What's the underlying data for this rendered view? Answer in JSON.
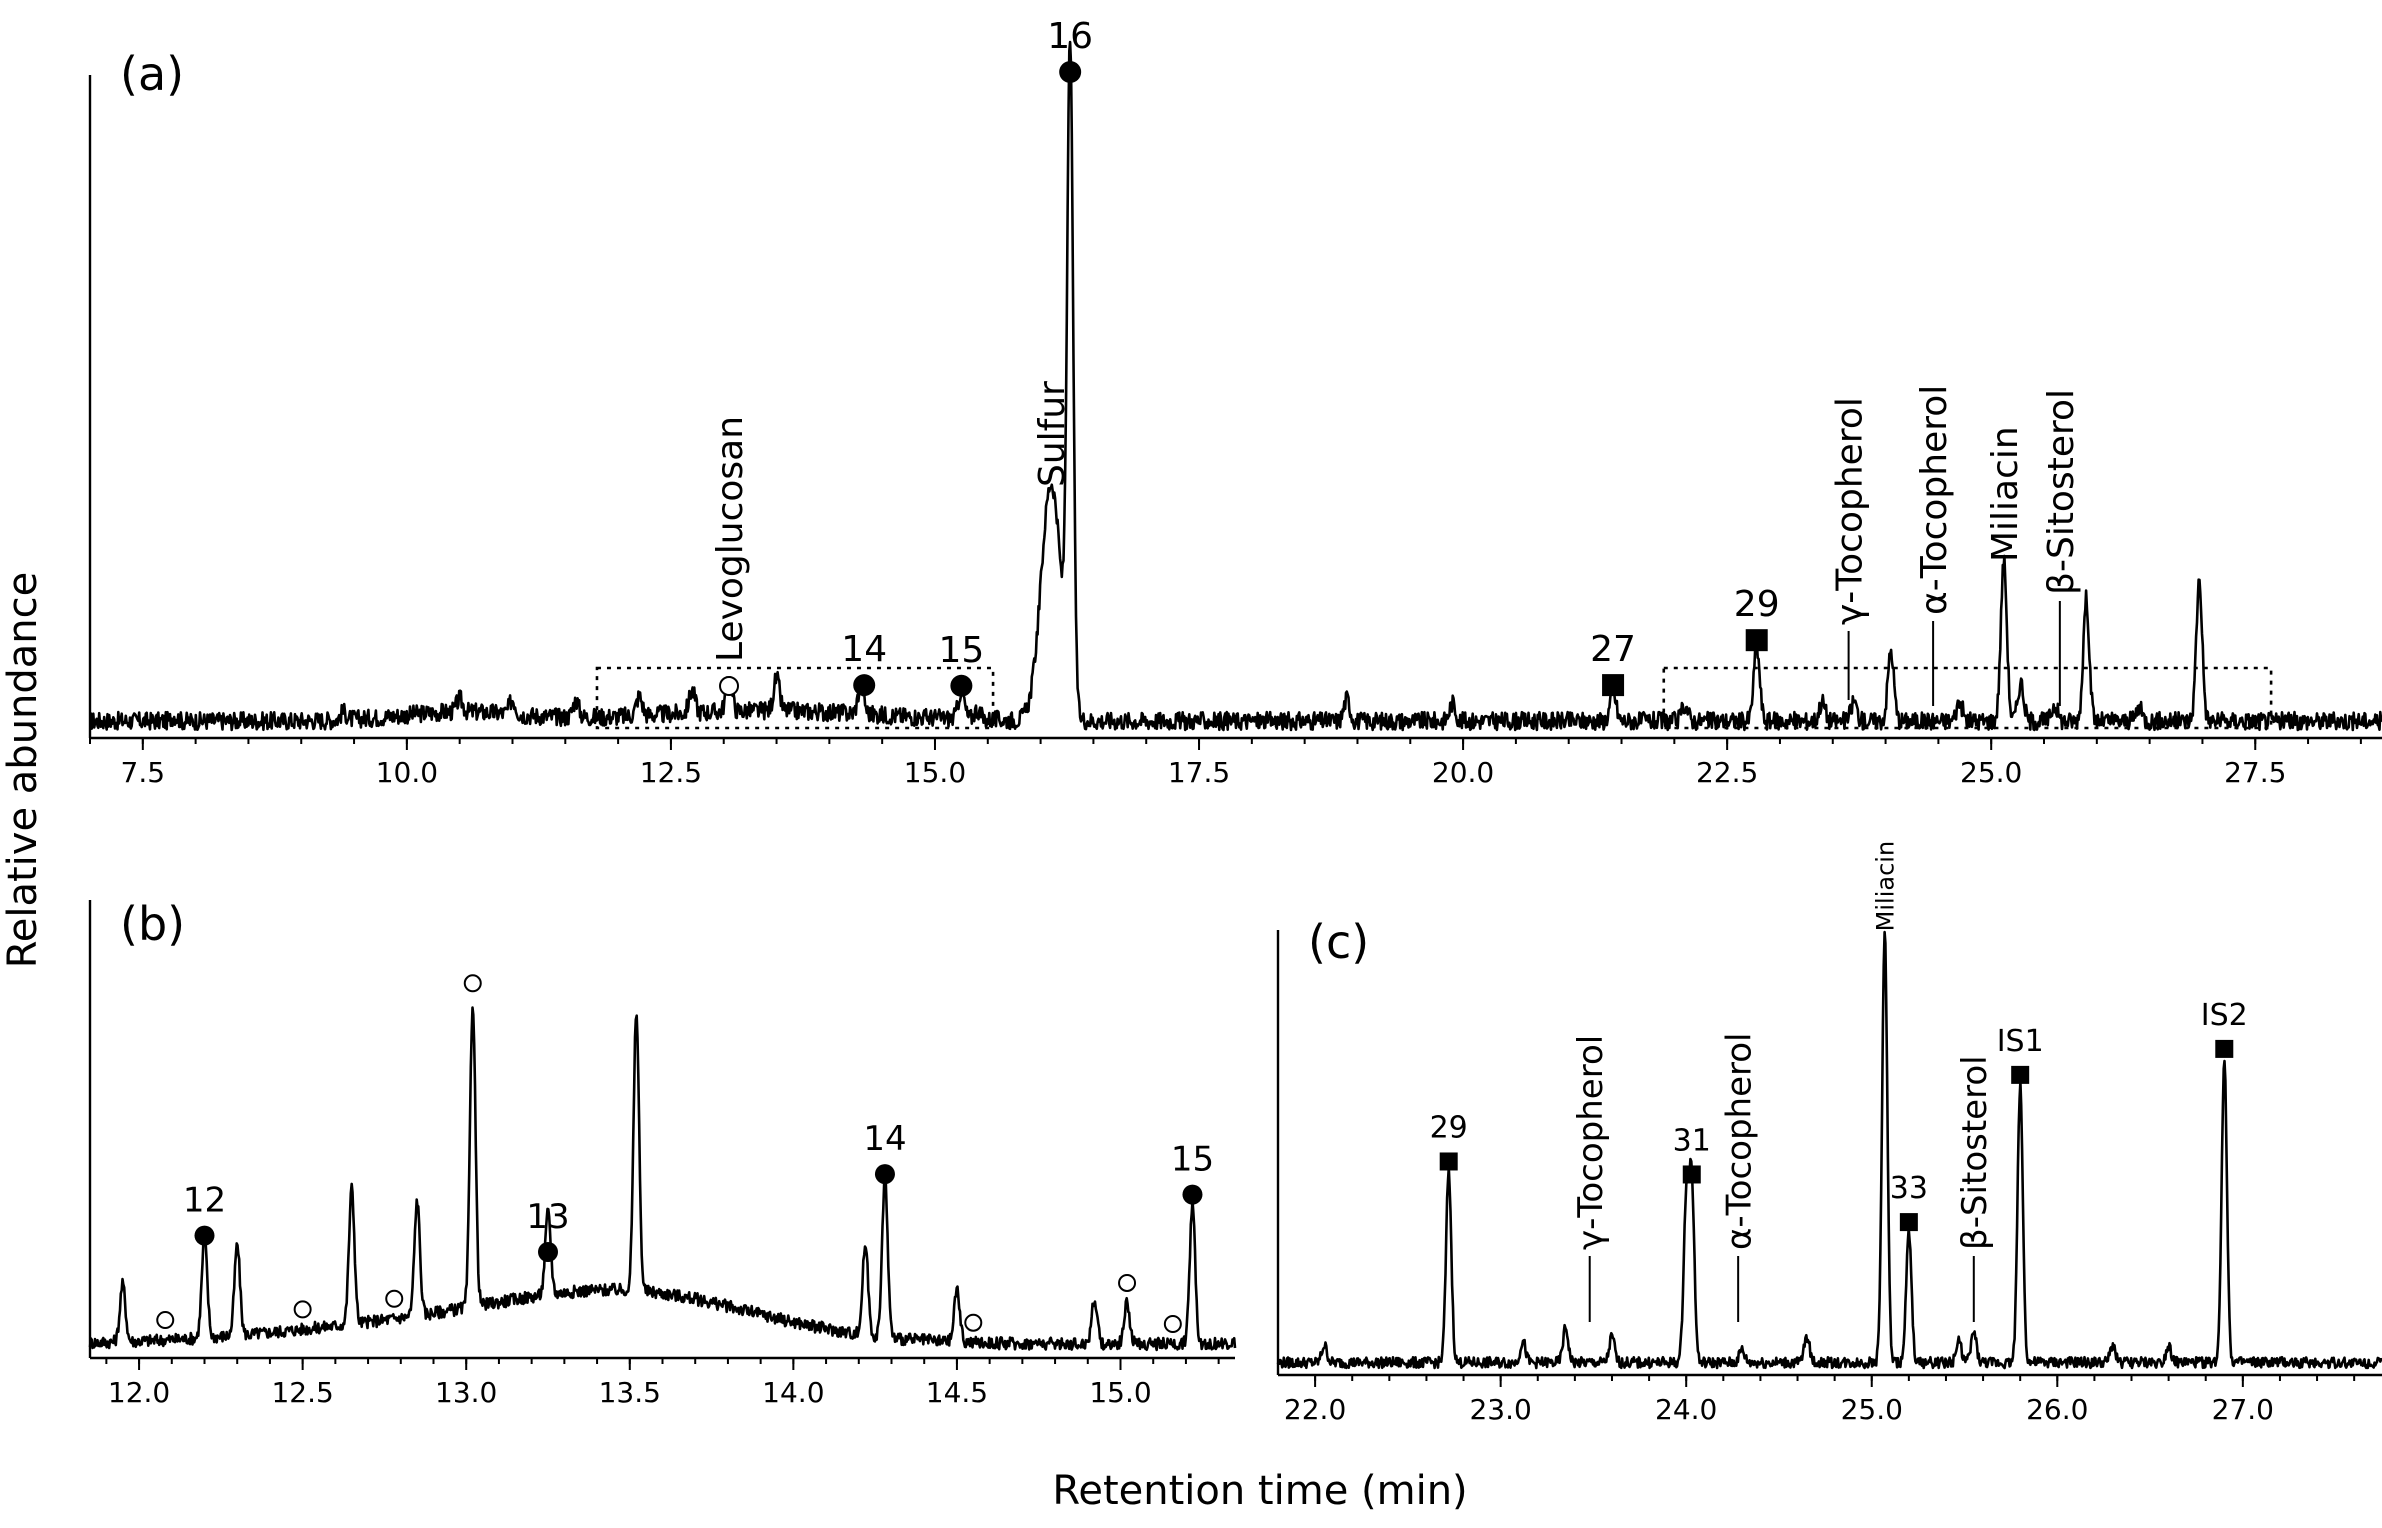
{
  "chart_data": [
    {
      "type": "line",
      "panel": "(a)",
      "xlim": [
        7.0,
        28.7
      ],
      "ylim": [
        0,
        100
      ],
      "xticks": [
        "7.5",
        "10.0",
        "12.5",
        "15.0",
        "17.5",
        "20.0",
        "22.5",
        "25.0",
        "27.5"
      ],
      "peaks": [
        [
          7.8,
          0.8
        ],
        [
          9.4,
          1.2
        ],
        [
          10.5,
          2.0
        ],
        [
          11.0,
          2.3
        ],
        [
          11.6,
          2.6
        ],
        [
          12.2,
          3
        ],
        [
          12.7,
          3.5
        ],
        [
          13.05,
          5.2
        ],
        [
          13.5,
          5
        ],
        [
          14.3,
          4.5
        ],
        [
          15.25,
          4.4
        ],
        [
          15.4,
          1.5
        ],
        [
          16.1,
          37
        ],
        [
          16.28,
          100
        ],
        [
          18.9,
          3.5
        ],
        [
          19.9,
          2.8
        ],
        [
          21.42,
          4.5
        ],
        [
          22.1,
          2.5
        ],
        [
          22.78,
          11.5
        ],
        [
          23.4,
          3
        ],
        [
          23.7,
          3
        ],
        [
          24.05,
          11
        ],
        [
          24.7,
          3
        ],
        [
          25.12,
          25
        ],
        [
          25.28,
          6
        ],
        [
          25.6,
          2.5
        ],
        [
          25.9,
          19
        ],
        [
          26.4,
          2
        ],
        [
          26.97,
          22
        ]
      ],
      "peak_labels": [
        {
          "text": "16",
          "x": 16.28,
          "y": 100,
          "marker": "filled-circle"
        },
        {
          "text": "14",
          "x": 14.33,
          "y": 6,
          "marker": "filled-circle"
        },
        {
          "text": "15",
          "x": 15.25,
          "y": 6,
          "marker": "filled-circle"
        },
        {
          "text": "27",
          "x": 21.42,
          "y": 7.3,
          "marker": "filled-square"
        },
        {
          "text": "29",
          "x": 22.78,
          "y": 14.5,
          "marker": "filled-square"
        }
      ],
      "compound_labels": [
        {
          "text": "Levoglucosan",
          "x": 13.05,
          "marker": "open-circle"
        },
        {
          "text": "Sulfur",
          "x": 16.1
        },
        {
          "text": "γ-Tocopherol",
          "x": 23.65
        },
        {
          "text": "α-Tocopherol",
          "x": 24.45
        },
        {
          "text": "Miliacin",
          "x": 25.12
        },
        {
          "text": "β-Sitosterol",
          "x": 25.65
        }
      ],
      "zoom_boxes": [
        [
          11.8,
          15.55
        ],
        [
          21.9,
          27.65
        ]
      ]
    },
    {
      "type": "line",
      "panel": "(b)",
      "xlim": [
        11.85,
        15.35
      ],
      "ylim": [
        0,
        100
      ],
      "xticks": [
        "12.0",
        "12.5",
        "13.0",
        "13.5",
        "14.0",
        "14.5",
        "15.0"
      ],
      "peaks": [
        [
          11.95,
          14
        ],
        [
          12.2,
          24
        ],
        [
          12.3,
          22
        ],
        [
          12.65,
          33
        ],
        [
          12.85,
          28
        ],
        [
          13.02,
          74
        ],
        [
          13.25,
          20
        ],
        [
          13.52,
          68
        ],
        [
          14.22,
          22
        ],
        [
          14.28,
          39
        ],
        [
          14.5,
          13
        ],
        [
          14.92,
          11
        ],
        [
          15.02,
          10
        ],
        [
          15.22,
          34
        ]
      ],
      "peak_labels": [
        {
          "text": "12",
          "x": 12.2,
          "marker": "filled-circle"
        },
        {
          "text": "13",
          "x": 13.25,
          "marker": "filled-circle"
        },
        {
          "text": "14",
          "x": 14.28,
          "marker": "filled-circle"
        },
        {
          "text": "15",
          "x": 15.22,
          "marker": "filled-circle"
        }
      ],
      "open_circles_x": [
        12.08,
        12.5,
        12.78,
        13.02,
        14.55,
        15.02,
        15.16
      ]
    },
    {
      "type": "line",
      "panel": "(c)",
      "xlim": [
        21.8,
        27.75
      ],
      "ylim": [
        0,
        100
      ],
      "xticks": [
        "22.0",
        "23.0",
        "24.0",
        "25.0",
        "26.0",
        "27.0"
      ],
      "peaks": [
        [
          22.05,
          4
        ],
        [
          22.72,
          44
        ],
        [
          23.12,
          5
        ],
        [
          23.35,
          8
        ],
        [
          23.6,
          6
        ],
        [
          24.0,
          36
        ],
        [
          24.03,
          41
        ],
        [
          24.3,
          3
        ],
        [
          24.65,
          6
        ],
        [
          25.07,
          99
        ],
        [
          25.2,
          30
        ],
        [
          25.47,
          5
        ],
        [
          25.55,
          7
        ],
        [
          25.8,
          64
        ],
        [
          26.3,
          4
        ],
        [
          26.6,
          4
        ],
        [
          26.9,
          70
        ]
      ],
      "peak_labels": [
        {
          "text": "29",
          "x": 22.72,
          "marker": "filled-square"
        },
        {
          "text": "31",
          "x": 24.03,
          "marker": "filled-square"
        },
        {
          "text": "33",
          "x": 25.2,
          "marker": "filled-square"
        },
        {
          "text": "IS1",
          "x": 25.8,
          "marker": "filled-square"
        },
        {
          "text": "IS2",
          "x": 26.9,
          "marker": "filled-square"
        }
      ],
      "compound_labels": [
        {
          "text": "Miliacin",
          "x": 25.07
        },
        {
          "text": "γ-Tocopherol",
          "x": 23.48
        },
        {
          "text": "α-Tocopherol",
          "x": 24.28
        },
        {
          "text": "β-Sitosterol",
          "x": 25.55
        }
      ]
    }
  ],
  "ylabel": "Relative abundance",
  "xlabel": "Retention time (min)"
}
